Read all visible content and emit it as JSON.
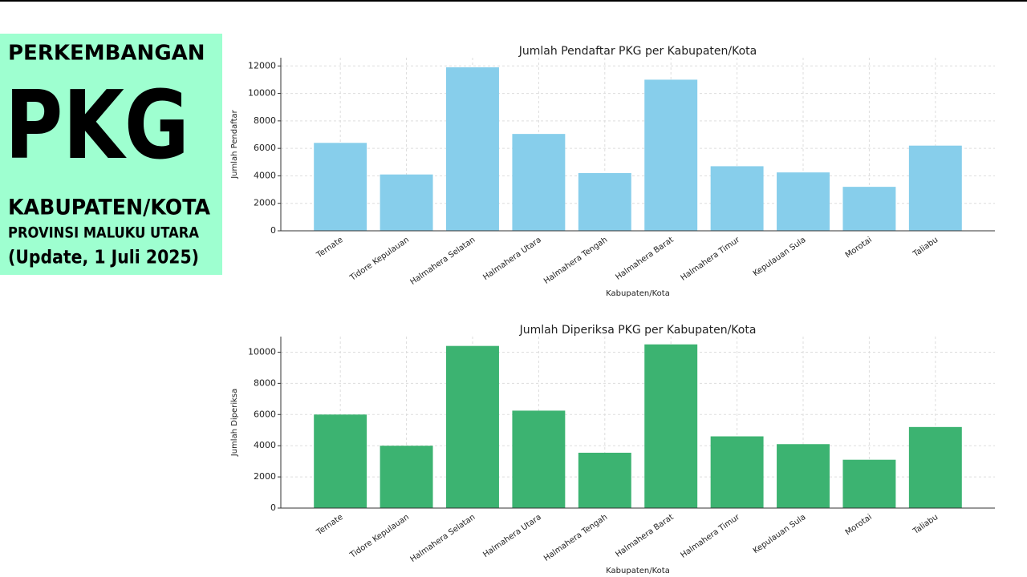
{
  "panel": {
    "line1": "PERKEMBANGAN",
    "line2": "PKG",
    "line3": "KABUPATEN/KOTA",
    "line4": "PROVINSI MALUKU UTARA",
    "line5": "(Update, 1 Juli 2025)"
  },
  "chart_data": [
    {
      "type": "bar",
      "title": "Jumlah Pendaftar PKG per Kabupaten/Kota",
      "x_label": "Kabupaten/Kota",
      "y_label": "Jumlah Pendaftar",
      "categories": [
        "Ternate",
        "Tidore Kepulauan",
        "Halmahera Selatan",
        "Halmahera Utara",
        "Halmahera Tengah",
        "Halmahera Barat",
        "Halmahera Timur",
        "Kepulauan Sula",
        "Morotai",
        "Taliabu"
      ],
      "values": [
        6400,
        4100,
        11900,
        7050,
        4200,
        11000,
        4700,
        4250,
        3200,
        6200
      ],
      "color": "#87ceeb",
      "ylim": [
        0,
        12600
      ],
      "yticks": [
        0,
        2000,
        4000,
        6000,
        8000,
        10000,
        12000
      ],
      "grid": true
    },
    {
      "type": "bar",
      "title": "Jumlah Diperiksa PKG per Kabupaten/Kota",
      "x_label": "Kabupaten/Kota",
      "y_label": "Jumlah Diperiksa",
      "categories": [
        "Ternate",
        "Tidore Kepulauan",
        "Halmahera Selatan",
        "Halmahera Utara",
        "Halmahera Tengah",
        "Halmahera Barat",
        "Halmahera Timur",
        "Kepulauan Sula",
        "Morotai",
        "Taliabu"
      ],
      "values": [
        6000,
        4000,
        10400,
        6250,
        3550,
        10500,
        4600,
        4100,
        3100,
        5200
      ],
      "color": "#3cb371",
      "ylim": [
        0,
        11000
      ],
      "yticks": [
        0,
        2000,
        4000,
        6000,
        8000,
        10000
      ],
      "grid": true
    }
  ]
}
